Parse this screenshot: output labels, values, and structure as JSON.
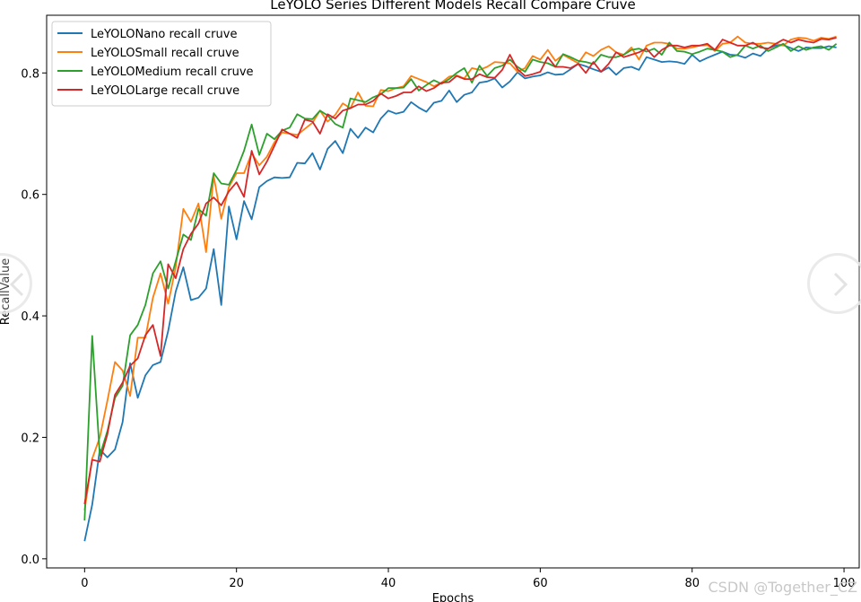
{
  "chart_data": {
    "type": "line",
    "title": "LeYOLO Series Different Models Recall Compare Cruve",
    "xlabel": "Epochs",
    "ylabel": "RecallValue",
    "xlim": [
      -5,
      102
    ],
    "ylim": [
      -0.015,
      0.895
    ],
    "xticks": [
      0,
      20,
      40,
      60,
      80,
      100
    ],
    "xtick_labels": [
      "0",
      "20",
      "40",
      "60",
      "80",
      "100"
    ],
    "yticks": [
      0.0,
      0.2,
      0.4,
      0.6,
      0.8
    ],
    "ytick_labels": [
      "0.0",
      "0.2",
      "0.4",
      "0.6",
      "0.8"
    ],
    "grid": false,
    "legend_position": "upper-left",
    "x": [
      0,
      1,
      2,
      3,
      4,
      5,
      6,
      7,
      8,
      9,
      10,
      11,
      12,
      13,
      14,
      15,
      16,
      17,
      18,
      19,
      20,
      21,
      22,
      23,
      24,
      25,
      26,
      27,
      28,
      29,
      30,
      31,
      32,
      33,
      34,
      35,
      36,
      37,
      38,
      39,
      40,
      41,
      42,
      43,
      44,
      45,
      46,
      47,
      48,
      49,
      50,
      51,
      52,
      53,
      54,
      55,
      56,
      57,
      58,
      59,
      60,
      61,
      62,
      63,
      64,
      65,
      66,
      67,
      68,
      69,
      70,
      71,
      72,
      73,
      74,
      75,
      76,
      77,
      78,
      79,
      80,
      81,
      82,
      83,
      84,
      85,
      86,
      87,
      88,
      89,
      90,
      91,
      92,
      93,
      94,
      95,
      96,
      97,
      98,
      99
    ],
    "series": [
      {
        "name": "LeYOLONano recall cruve",
        "color": "#1f77b4",
        "values": [
          0.029,
          0.089,
          0.18,
          0.167,
          0.18,
          0.225,
          0.322,
          0.265,
          0.302,
          0.319,
          0.324,
          0.375,
          0.44,
          0.48,
          0.426,
          0.43,
          0.445,
          0.51,
          0.418,
          0.58,
          0.526,
          0.589,
          0.559,
          0.612,
          0.622,
          0.628,
          0.627,
          0.628,
          0.652,
          0.651,
          0.668,
          0.641,
          0.675,
          0.688,
          0.668,
          0.708,
          0.693,
          0.71,
          0.702,
          0.725,
          0.738,
          0.733,
          0.736,
          0.752,
          0.743,
          0.736,
          0.751,
          0.754,
          0.771,
          0.752,
          0.764,
          0.768,
          0.784,
          0.786,
          0.791,
          0.776,
          0.786,
          0.801,
          0.791,
          0.794,
          0.796,
          0.801,
          0.797,
          0.798,
          0.806,
          0.815,
          0.811,
          0.806,
          0.802,
          0.809,
          0.797,
          0.808,
          0.81,
          0.805,
          0.826,
          0.822,
          0.818,
          0.819,
          0.818,
          0.815,
          0.83,
          0.819,
          0.825,
          0.83,
          0.835,
          0.83,
          0.829,
          0.825,
          0.832,
          0.828,
          0.84,
          0.845,
          0.846,
          0.841,
          0.836,
          0.842,
          0.841,
          0.841,
          0.844,
          0.842
        ]
      },
      {
        "name": "LeYOLOSmall recall cruve",
        "color": "#ff7f0e",
        "values": [
          0.08,
          0.165,
          0.2,
          0.26,
          0.324,
          0.31,
          0.268,
          0.364,
          0.364,
          0.43,
          0.47,
          0.42,
          0.48,
          0.576,
          0.555,
          0.585,
          0.505,
          0.63,
          0.56,
          0.612,
          0.635,
          0.635,
          0.668,
          0.648,
          0.662,
          0.686,
          0.702,
          0.7,
          0.698,
          0.708,
          0.718,
          0.738,
          0.72,
          0.731,
          0.75,
          0.742,
          0.768,
          0.746,
          0.745,
          0.772,
          0.77,
          0.775,
          0.778,
          0.795,
          0.79,
          0.785,
          0.778,
          0.784,
          0.794,
          0.796,
          0.791,
          0.808,
          0.805,
          0.81,
          0.818,
          0.817,
          0.816,
          0.802,
          0.808,
          0.828,
          0.822,
          0.838,
          0.82,
          0.83,
          0.823,
          0.816,
          0.834,
          0.828,
          0.838,
          0.844,
          0.834,
          0.83,
          0.842,
          0.822,
          0.845,
          0.85,
          0.85,
          0.848,
          0.84,
          0.84,
          0.842,
          0.845,
          0.846,
          0.836,
          0.848,
          0.85,
          0.86,
          0.85,
          0.848,
          0.848,
          0.85,
          0.848,
          0.845,
          0.855,
          0.858,
          0.857,
          0.853,
          0.858,
          0.856,
          0.86
        ]
      },
      {
        "name": "LeYOLOMedium recall cruve",
        "color": "#2ca02c",
        "values": [
          0.063,
          0.367,
          0.17,
          0.21,
          0.265,
          0.285,
          0.368,
          0.385,
          0.418,
          0.47,
          0.49,
          0.445,
          0.49,
          0.534,
          0.525,
          0.576,
          0.565,
          0.635,
          0.618,
          0.616,
          0.64,
          0.672,
          0.715,
          0.665,
          0.7,
          0.691,
          0.705,
          0.71,
          0.732,
          0.725,
          0.724,
          0.738,
          0.73,
          0.716,
          0.71,
          0.758,
          0.755,
          0.752,
          0.76,
          0.765,
          0.775,
          0.775,
          0.776,
          0.79,
          0.771,
          0.78,
          0.788,
          0.782,
          0.79,
          0.8,
          0.808,
          0.784,
          0.812,
          0.795,
          0.808,
          0.812,
          0.822,
          0.81,
          0.802,
          0.822,
          0.818,
          0.816,
          0.81,
          0.831,
          0.826,
          0.82,
          0.818,
          0.815,
          0.83,
          0.826,
          0.826,
          0.83,
          0.838,
          0.84,
          0.835,
          0.84,
          0.83,
          0.85,
          0.836,
          0.835,
          0.831,
          0.835,
          0.84,
          0.838,
          0.835,
          0.826,
          0.83,
          0.845,
          0.84,
          0.845,
          0.836,
          0.842,
          0.848,
          0.836,
          0.844,
          0.838,
          0.842,
          0.844,
          0.838,
          0.848
        ]
      },
      {
        "name": "LeYOLOLarge recall cruve",
        "color": "#d62728",
        "values": [
          0.09,
          0.163,
          0.16,
          0.205,
          0.27,
          0.29,
          0.318,
          0.33,
          0.368,
          0.385,
          0.334,
          0.485,
          0.462,
          0.51,
          0.535,
          0.552,
          0.585,
          0.595,
          0.582,
          0.605,
          0.62,
          0.596,
          0.672,
          0.633,
          0.654,
          0.68,
          0.707,
          0.7,
          0.693,
          0.723,
          0.72,
          0.7,
          0.732,
          0.725,
          0.738,
          0.742,
          0.748,
          0.748,
          0.754,
          0.766,
          0.758,
          0.762,
          0.768,
          0.768,
          0.778,
          0.77,
          0.775,
          0.784,
          0.785,
          0.795,
          0.79,
          0.79,
          0.798,
          0.793,
          0.792,
          0.805,
          0.83,
          0.806,
          0.795,
          0.798,
          0.802,
          0.826,
          0.81,
          0.81,
          0.808,
          0.815,
          0.8,
          0.818,
          0.802,
          0.815,
          0.834,
          0.826,
          0.83,
          0.834,
          0.84,
          0.826,
          0.838,
          0.845,
          0.845,
          0.842,
          0.845,
          0.845,
          0.848,
          0.838,
          0.855,
          0.85,
          0.845,
          0.845,
          0.85,
          0.842,
          0.84,
          0.848,
          0.855,
          0.85,
          0.855,
          0.852,
          0.85,
          0.856,
          0.855,
          0.858
        ]
      }
    ]
  },
  "watermark": "CSDN @Together_CZ",
  "nav": {
    "prev_icon": "chevron-left-icon",
    "next_icon": "chevron-right-icon"
  }
}
